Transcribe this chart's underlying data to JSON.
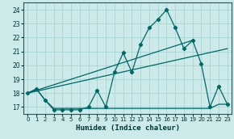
{
  "xlabel": "Humidex (Indice chaleur)",
  "bg_color": "#cceaea",
  "grid_color": "#aad4d4",
  "line_color": "#006666",
  "xlim": [
    -0.5,
    23.5
  ],
  "ylim": [
    16.5,
    24.5
  ],
  "yticks": [
    17,
    18,
    19,
    20,
    21,
    22,
    23,
    24
  ],
  "xticks": [
    0,
    1,
    2,
    3,
    4,
    5,
    6,
    7,
    8,
    9,
    10,
    11,
    12,
    13,
    14,
    15,
    16,
    17,
    18,
    19,
    20,
    21,
    22,
    23
  ],
  "curve1_x": [
    0,
    1,
    2,
    3,
    4,
    5,
    6,
    7,
    8,
    9,
    10,
    11,
    12,
    13,
    14,
    15,
    16,
    17,
    18,
    19,
    20,
    21,
    22,
    23
  ],
  "curve1_y": [
    18.0,
    18.3,
    17.5,
    16.8,
    16.8,
    16.8,
    16.8,
    17.0,
    18.2,
    17.0,
    19.5,
    20.9,
    19.5,
    21.5,
    22.7,
    23.3,
    24.0,
    22.7,
    21.2,
    21.8,
    20.1,
    17.0,
    18.5,
    17.2
  ],
  "curve2_x": [
    0,
    1,
    2,
    3,
    4,
    5,
    6,
    7,
    8,
    9,
    10,
    11,
    12,
    13,
    14,
    15,
    16,
    17,
    18,
    19,
    20,
    21,
    22,
    23
  ],
  "curve2_y": [
    18.0,
    18.3,
    17.5,
    16.9,
    16.9,
    16.9,
    16.9,
    16.9,
    16.9,
    16.9,
    16.9,
    16.9,
    16.9,
    16.9,
    16.9,
    16.9,
    16.9,
    16.9,
    16.9,
    16.9,
    16.9,
    16.9,
    17.2,
    17.2
  ],
  "line3_x": [
    0,
    23
  ],
  "line3_y": [
    18.0,
    21.2
  ],
  "line4_x": [
    0,
    19
  ],
  "line4_y": [
    18.0,
    21.8
  ]
}
